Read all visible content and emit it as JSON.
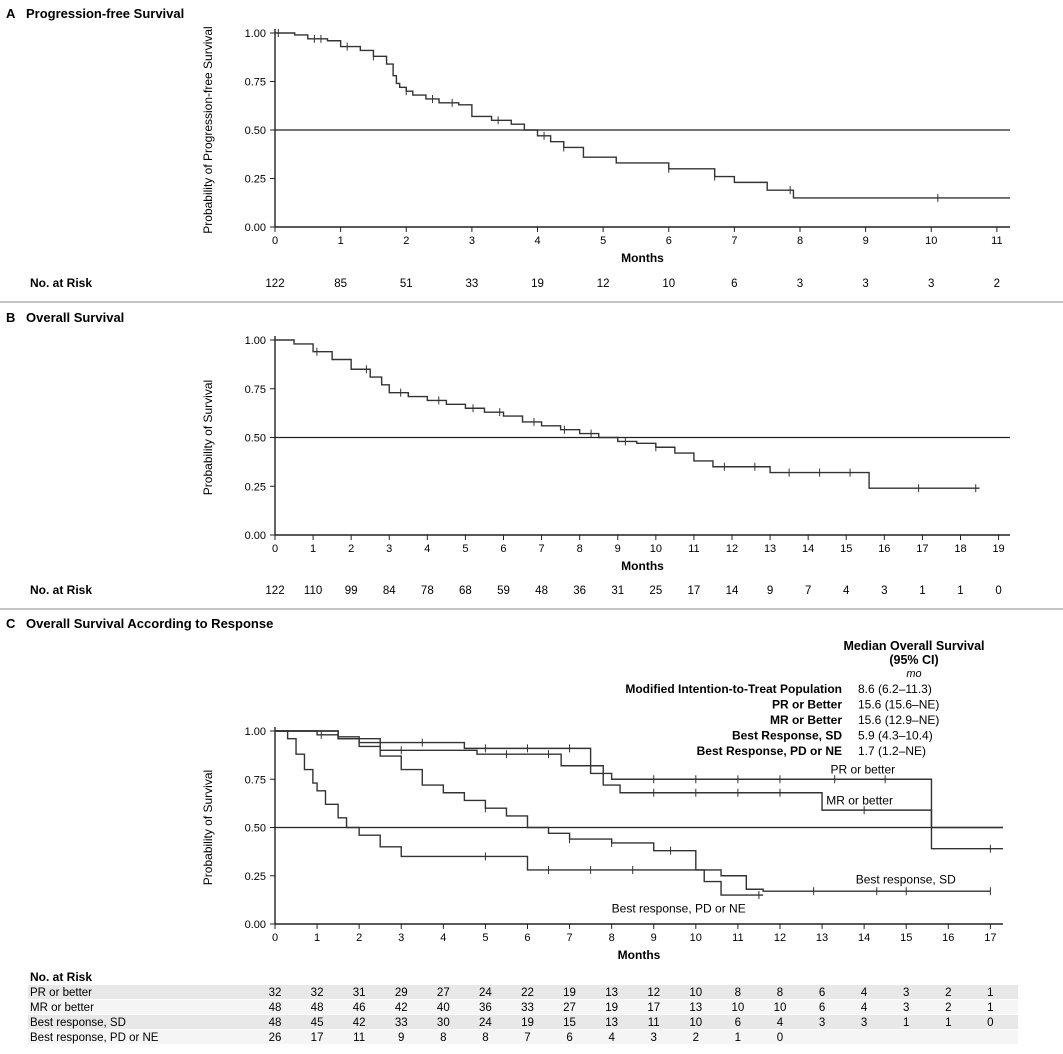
{
  "figure": {
    "risk_label": "No. at Risk",
    "xlabel": "Months",
    "median_header": [
      "Median Overall Survival",
      "(95% CI)",
      "mo"
    ]
  },
  "chart_data": [
    {
      "id": "A",
      "type": "line",
      "letter": "A",
      "title": "Progression-free Survival",
      "xlabel": "Months",
      "ylabel": "Probability of Progression-free Survival",
      "xlim": [
        0,
        11.2
      ],
      "ylim": [
        0,
        1.0
      ],
      "xticks": [
        0,
        1,
        2,
        3,
        4,
        5,
        6,
        7,
        8,
        9,
        10,
        11
      ],
      "yticks": [
        0,
        0.25,
        0.5,
        0.75,
        1.0
      ],
      "ytick_labels": [
        "0.00",
        "0.25",
        "0.50",
        "0.75",
        "1.00"
      ],
      "reference_line": 0.5,
      "series": [
        {
          "name": "Progression-free Survival",
          "x": [
            0,
            0.3,
            0.5,
            0.8,
            1.0,
            1.3,
            1.5,
            1.7,
            1.8,
            1.85,
            1.9,
            2.0,
            2.1,
            2.3,
            2.5,
            2.8,
            3.0,
            3.3,
            3.6,
            3.8,
            4.0,
            4.2,
            4.4,
            4.7,
            5.2,
            6.0,
            6.7,
            7.0,
            7.5,
            7.9,
            11.2
          ],
          "y": [
            1.0,
            0.99,
            0.97,
            0.96,
            0.93,
            0.91,
            0.88,
            0.84,
            0.78,
            0.74,
            0.72,
            0.7,
            0.68,
            0.66,
            0.64,
            0.63,
            0.57,
            0.55,
            0.53,
            0.5,
            0.47,
            0.44,
            0.41,
            0.36,
            0.33,
            0.3,
            0.26,
            0.23,
            0.19,
            0.15,
            0.15
          ],
          "censor_x": [
            0.05,
            0.6,
            0.7,
            1.1,
            1.5,
            2.0,
            2.4,
            2.7,
            3.4,
            4.1,
            4.4,
            6.0,
            6.7,
            7.85,
            10.1
          ]
        }
      ],
      "risk": [
        {
          "name": "",
          "x": [
            0,
            1,
            2,
            3,
            4,
            5,
            6,
            7,
            8,
            9,
            10,
            11
          ],
          "values": [
            "122",
            "85",
            "51",
            "33",
            "19",
            "12",
            "10",
            "6",
            "3",
            "3",
            "3",
            "2"
          ]
        }
      ]
    },
    {
      "id": "B",
      "type": "line",
      "letter": "B",
      "title": "Overall Survival",
      "xlabel": "Months",
      "ylabel": "Probability of Survival",
      "xlim": [
        0,
        19.3
      ],
      "ylim": [
        0,
        1.0
      ],
      "xticks": [
        0,
        1,
        2,
        3,
        4,
        5,
        6,
        7,
        8,
        9,
        10,
        11,
        12,
        13,
        14,
        15,
        16,
        17,
        18,
        19
      ],
      "yticks": [
        0,
        0.25,
        0.5,
        0.75,
        1.0
      ],
      "ytick_labels": [
        "0.00",
        "0.25",
        "0.50",
        "0.75",
        "1.00"
      ],
      "reference_line": 0.5,
      "series": [
        {
          "name": "Overall Survival",
          "x": [
            0,
            0.5,
            1.0,
            1.5,
            2.0,
            2.5,
            2.8,
            3.0,
            3.5,
            4.0,
            4.5,
            5.0,
            5.5,
            6.0,
            6.5,
            7.0,
            7.5,
            8.0,
            8.5,
            9.0,
            9.5,
            10.0,
            10.5,
            11.0,
            11.5,
            12.0,
            13.0,
            14.0,
            15.0,
            15.6,
            16.5,
            18.5
          ],
          "y": [
            1.0,
            0.98,
            0.94,
            0.9,
            0.85,
            0.81,
            0.77,
            0.73,
            0.71,
            0.69,
            0.67,
            0.65,
            0.63,
            0.61,
            0.58,
            0.56,
            0.54,
            0.52,
            0.5,
            0.48,
            0.47,
            0.45,
            0.42,
            0.38,
            0.35,
            0.35,
            0.32,
            0.32,
            0.32,
            0.24,
            0.24,
            0.24
          ],
          "censor_x": [
            1.1,
            2.4,
            3.3,
            4.3,
            5.2,
            5.9,
            6.8,
            7.6,
            8.3,
            9.2,
            10.0,
            11.8,
            12.6,
            13.5,
            14.3,
            15.1,
            16.9,
            18.4
          ]
        }
      ],
      "risk": [
        {
          "name": "",
          "x": [
            0,
            1,
            2,
            3,
            4,
            5,
            6,
            7,
            8,
            9,
            10,
            11,
            12,
            13,
            14,
            15,
            16,
            17,
            18,
            19
          ],
          "values": [
            "122",
            "110",
            "99",
            "84",
            "78",
            "68",
            "59",
            "48",
            "36",
            "31",
            "25",
            "17",
            "14",
            "9",
            "7",
            "4",
            "3",
            "1",
            "1",
            "0"
          ]
        }
      ]
    },
    {
      "id": "C",
      "type": "line",
      "letter": "C",
      "title": "Overall Survival According to Response",
      "xlabel": "Months",
      "ylabel": "Probability of Survival",
      "xlim": [
        0,
        17.3
      ],
      "ylim": [
        0,
        1.0
      ],
      "xticks": [
        0,
        1,
        2,
        3,
        4,
        5,
        6,
        7,
        8,
        9,
        10,
        11,
        12,
        13,
        14,
        15,
        16,
        17
      ],
      "yticks": [
        0,
        0.25,
        0.5,
        0.75,
        1.0
      ],
      "ytick_labels": [
        "0.00",
        "0.25",
        "0.50",
        "0.75",
        "1.00"
      ],
      "reference_line": 0.5,
      "series": [
        {
          "name": "PR or better",
          "label": "PR or better",
          "label_at": [
            13.2,
            0.78
          ],
          "x": [
            0,
            1.5,
            2.0,
            4.5,
            7.5,
            8.0,
            15.6,
            17.3
          ],
          "y": [
            1.0,
            0.97,
            0.94,
            0.91,
            0.78,
            0.75,
            0.5,
            0.5
          ],
          "censor_x": [
            3.5,
            5.0,
            6.0,
            7.0,
            9.0,
            10.0,
            11.0,
            12.0,
            13.3,
            14.5
          ]
        },
        {
          "name": "MR or better",
          "label": "MR or better",
          "label_at": [
            13.1,
            0.62
          ],
          "x": [
            0,
            1.5,
            2.5,
            4.8,
            6.8,
            7.8,
            8.2,
            12.9,
            13.0,
            15.6,
            17.3
          ],
          "y": [
            1.0,
            0.96,
            0.9,
            0.88,
            0.82,
            0.72,
            0.68,
            0.68,
            0.59,
            0.39,
            0.39
          ],
          "censor_x": [
            3.0,
            5.5,
            6.5,
            9.0,
            10.0,
            11.0,
            12.0,
            14.0,
            17.0
          ]
        },
        {
          "name": "Best response, SD",
          "label": "Best response, SD",
          "label_at": [
            13.8,
            0.21
          ],
          "x": [
            0,
            1.0,
            1.5,
            2.0,
            2.5,
            3.0,
            3.5,
            4.0,
            4.5,
            5.0,
            5.5,
            6.0,
            6.5,
            7.0,
            8.0,
            9.0,
            10.0,
            10.6,
            11.2,
            11.6,
            17.0
          ],
          "y": [
            1.0,
            0.98,
            0.96,
            0.92,
            0.87,
            0.8,
            0.72,
            0.68,
            0.64,
            0.6,
            0.56,
            0.5,
            0.47,
            0.44,
            0.42,
            0.38,
            0.28,
            0.25,
            0.18,
            0.17,
            0.17
          ],
          "censor_x": [
            1.1,
            5.0,
            7.0,
            8.0,
            9.4,
            12.8,
            14.3,
            15.0,
            17.0
          ]
        },
        {
          "name": "Best response, PD or NE",
          "label": "Best response, PD or NE",
          "label_at": [
            8.0,
            0.06
          ],
          "x": [
            0,
            0.3,
            0.5,
            0.7,
            0.9,
            1.0,
            1.2,
            1.5,
            1.7,
            2.0,
            2.5,
            3.0,
            6.0,
            10.2,
            10.6,
            11.6
          ],
          "y": [
            1.0,
            0.96,
            0.88,
            0.8,
            0.73,
            0.69,
            0.62,
            0.55,
            0.5,
            0.46,
            0.4,
            0.35,
            0.28,
            0.22,
            0.15,
            0.15
          ],
          "censor_x": [
            5.0,
            6.5,
            7.5,
            8.5,
            11.5
          ]
        }
      ],
      "risk": [
        {
          "name": "PR or better",
          "x": [
            0,
            1,
            2,
            3,
            4,
            5,
            6,
            7,
            8,
            9,
            10,
            11,
            12,
            13,
            14,
            15,
            16,
            17
          ],
          "values": [
            "32",
            "32",
            "31",
            "29",
            "27",
            "24",
            "22",
            "19",
            "13",
            "12",
            "10",
            "8",
            "8",
            "6",
            "4",
            "3",
            "2",
            "1"
          ]
        },
        {
          "name": "MR or better",
          "x": [
            0,
            1,
            2,
            3,
            4,
            5,
            6,
            7,
            8,
            9,
            10,
            11,
            12,
            13,
            14,
            15,
            16,
            17
          ],
          "values": [
            "48",
            "48",
            "46",
            "42",
            "40",
            "36",
            "33",
            "27",
            "19",
            "17",
            "13",
            "10",
            "10",
            "6",
            "4",
            "3",
            "2",
            "1"
          ]
        },
        {
          "name": "Best response, SD",
          "x": [
            0,
            1,
            2,
            3,
            4,
            5,
            6,
            7,
            8,
            9,
            10,
            11,
            12,
            13,
            14,
            15,
            16,
            17
          ],
          "values": [
            "48",
            "45",
            "42",
            "33",
            "30",
            "24",
            "19",
            "15",
            "13",
            "11",
            "10",
            "6",
            "4",
            "3",
            "3",
            "1",
            "1",
            "0"
          ]
        },
        {
          "name": "Best response, PD or NE",
          "x": [
            0,
            1,
            2,
            3,
            4,
            5,
            6,
            7,
            8,
            9,
            10,
            11,
            12
          ],
          "values": [
            "26",
            "17",
            "11",
            "9",
            "8",
            "8",
            "7",
            "6",
            "4",
            "3",
            "2",
            "1",
            "0"
          ]
        }
      ],
      "median_table": [
        {
          "label": "Modified Intention-to-Treat Population",
          "value": "8.6 (6.2–11.3)"
        },
        {
          "label": "PR or Better",
          "value": "15.6 (15.6–NE)"
        },
        {
          "label": "MR or Better",
          "value": "15.6 (12.9–NE)"
        },
        {
          "label": "Best Response, SD",
          "value": "5.9 (4.3–10.4)"
        },
        {
          "label": "Best Response, PD or NE",
          "value": "1.7 (1.2–NE)"
        }
      ]
    }
  ]
}
